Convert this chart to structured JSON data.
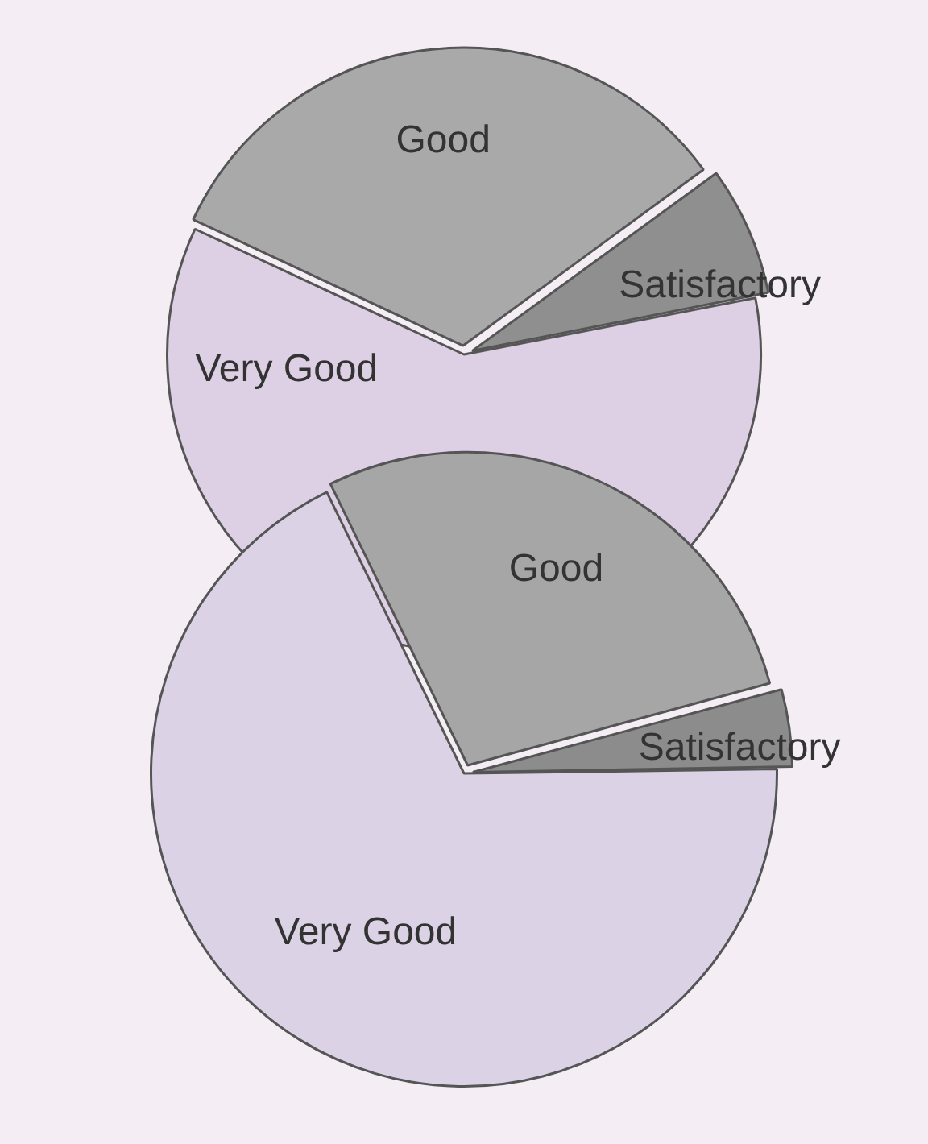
{
  "chart_data": [
    {
      "type": "pie",
      "categories": [
        "Good",
        "Satisfactory",
        "Very Good"
      ],
      "values": [
        33,
        7,
        60
      ],
      "colors": [
        "#a9a9a9",
        "#8f8f8f",
        "#ddd0e4"
      ]
    },
    {
      "type": "pie",
      "categories": [
        "Good",
        "Satisfactory",
        "Very Good"
      ],
      "values": [
        28,
        4,
        68
      ],
      "colors": [
        "#a6a6a6",
        "#8c8c8c",
        "#dcd2e6"
      ]
    }
  ]
}
